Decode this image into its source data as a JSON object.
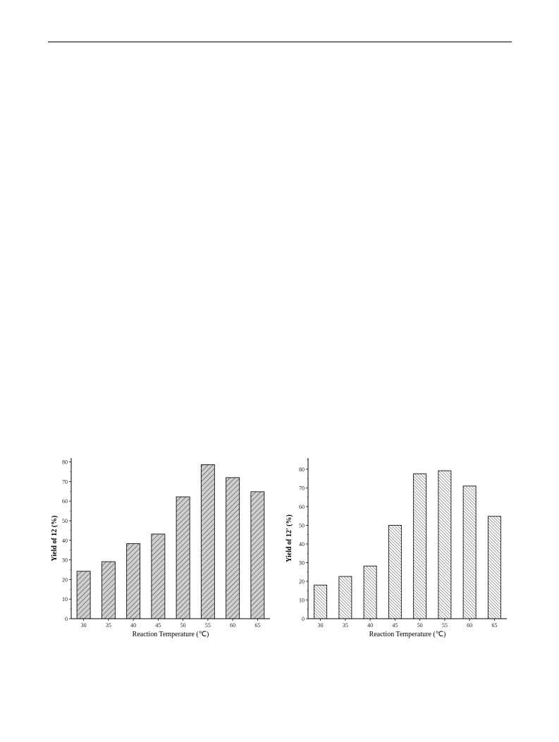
{
  "chart_data": [
    {
      "type": "bar",
      "categories": [
        "30",
        "35",
        "40",
        "45",
        "50",
        "55",
        "60",
        "65"
      ],
      "values": [
        24.2,
        29.1,
        38.3,
        43.2,
        62.2,
        78.6,
        72.0,
        64.8
      ],
      "xlabel": "Reaction Temperature (℃)",
      "ylabel_prefix": "Yield of ",
      "ylabel_bold": "12",
      "ylabel_suffix": " (%)",
      "ylim": [
        0,
        82
      ],
      "yticks": [
        "0",
        "10",
        "20",
        "30",
        "40",
        "50",
        "60",
        "70",
        "80"
      ],
      "fill_pattern": "diagonal-hatch-gray",
      "grid": false
    },
    {
      "type": "bar",
      "categories": [
        "30",
        "35",
        "40",
        "45",
        "50",
        "55",
        "60",
        "65"
      ],
      "values": [
        18.0,
        22.6,
        28.2,
        50.0,
        77.6,
        79.2,
        71.0,
        54.8
      ],
      "xlabel": "Reaction Temperature (℃)",
      "ylabel_prefix": "Yield of ",
      "ylabel_bold": "12'",
      "ylabel_suffix": " (%)",
      "ylim": [
        0,
        86
      ],
      "yticks": [
        "0",
        "10",
        "20",
        "30",
        "40",
        "50",
        "60",
        "70",
        "80"
      ],
      "fill_pattern": "dense-diagonal-hatch-white",
      "grid": false
    }
  ]
}
